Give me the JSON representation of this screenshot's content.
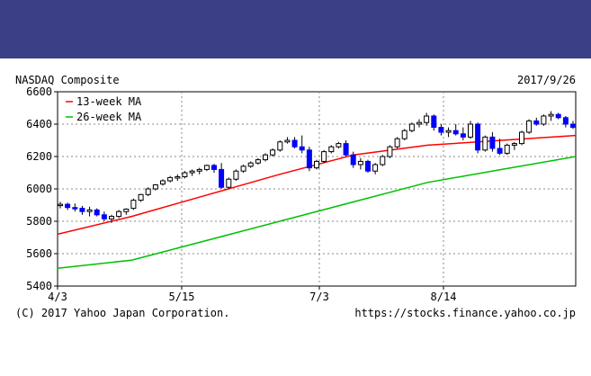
{
  "page": {
    "banner_color": "#3b3f86",
    "copyright": "(C) 2017 Yahoo Japan Corporation.",
    "source_url": "https://stocks.finance.yahoo.co.jp"
  },
  "chart_data": {
    "type": "candlestick",
    "title": "NASDAQ Composite",
    "date_label": "2017/9/26",
    "y_ticks": [
      5400,
      5600,
      5800,
      6000,
      6200,
      6400,
      6600
    ],
    "ylim": [
      5400,
      6600
    ],
    "x_ticks": [
      "4/3",
      "5/15",
      "7/3",
      "8/14"
    ],
    "grid": true,
    "legend_position": "top-left",
    "colors": {
      "up": "#ffffff",
      "down": "#0000ff",
      "ma13": "#ff0000",
      "ma26": "#00c000"
    },
    "legend": [
      {
        "label": "13-week MA",
        "color": "#ff0000"
      },
      {
        "label": "26-week MA",
        "color": "#00c000"
      }
    ],
    "candles": [
      [
        5900,
        5920,
        5880,
        5905
      ],
      [
        5905,
        5915,
        5870,
        5885
      ],
      [
        5885,
        5910,
        5860,
        5880
      ],
      [
        5880,
        5895,
        5840,
        5860
      ],
      [
        5860,
        5890,
        5830,
        5870
      ],
      [
        5870,
        5880,
        5830,
        5840
      ],
      [
        5840,
        5860,
        5800,
        5815
      ],
      [
        5815,
        5840,
        5790,
        5830
      ],
      [
        5830,
        5870,
        5820,
        5860
      ],
      [
        5860,
        5880,
        5840,
        5875
      ],
      [
        5880,
        5940,
        5870,
        5930
      ],
      [
        5930,
        5970,
        5920,
        5965
      ],
      [
        5965,
        6010,
        5955,
        6000
      ],
      [
        6000,
        6030,
        5990,
        6025
      ],
      [
        6030,
        6060,
        6020,
        6050
      ],
      [
        6050,
        6080,
        6040,
        6070
      ],
      [
        6070,
        6090,
        6050,
        6075
      ],
      [
        6075,
        6110,
        6065,
        6100
      ],
      [
        6100,
        6120,
        6080,
        6110
      ],
      [
        6110,
        6130,
        6090,
        6120
      ],
      [
        6120,
        6150,
        6110,
        6145
      ],
      [
        6145,
        6155,
        6100,
        6120
      ],
      [
        6120,
        6160,
        6000,
        6010
      ],
      [
        6010,
        6070,
        6000,
        6060
      ],
      [
        6060,
        6120,
        6050,
        6110
      ],
      [
        6110,
        6150,
        6100,
        6140
      ],
      [
        6140,
        6170,
        6130,
        6160
      ],
      [
        6160,
        6190,
        6150,
        6180
      ],
      [
        6180,
        6220,
        6170,
        6210
      ],
      [
        6210,
        6250,
        6200,
        6240
      ],
      [
        6240,
        6300,
        6230,
        6290
      ],
      [
        6290,
        6320,
        6280,
        6300
      ],
      [
        6300,
        6320,
        6250,
        6260
      ],
      [
        6260,
        6330,
        6220,
        6240
      ],
      [
        6240,
        6260,
        6110,
        6130
      ],
      [
        6130,
        6180,
        6120,
        6170
      ],
      [
        6170,
        6240,
        6160,
        6230
      ],
      [
        6230,
        6270,
        6220,
        6260
      ],
      [
        6260,
        6290,
        6250,
        6280
      ],
      [
        6280,
        6300,
        6200,
        6210
      ],
      [
        6210,
        6230,
        6130,
        6150
      ],
      [
        6150,
        6190,
        6120,
        6170
      ],
      [
        6170,
        6180,
        6100,
        6110
      ],
      [
        6110,
        6160,
        6090,
        6150
      ],
      [
        6150,
        6210,
        6140,
        6200
      ],
      [
        6200,
        6270,
        6190,
        6260
      ],
      [
        6260,
        6320,
        6250,
        6310
      ],
      [
        6310,
        6370,
        6300,
        6360
      ],
      [
        6360,
        6410,
        6350,
        6400
      ],
      [
        6400,
        6430,
        6380,
        6410
      ],
      [
        6410,
        6470,
        6390,
        6450
      ],
      [
        6450,
        6460,
        6360,
        6380
      ],
      [
        6380,
        6400,
        6330,
        6350
      ],
      [
        6350,
        6380,
        6320,
        6360
      ],
      [
        6360,
        6400,
        6330,
        6340
      ],
      [
        6340,
        6380,
        6300,
        6320
      ],
      [
        6320,
        6420,
        6310,
        6400
      ],
      [
        6400,
        6410,
        6220,
        6240
      ],
      [
        6240,
        6330,
        6230,
        6320
      ],
      [
        6320,
        6350,
        6230,
        6250
      ],
      [
        6250,
        6310,
        6210,
        6220
      ],
      [
        6220,
        6280,
        6210,
        6270
      ],
      [
        6270,
        6290,
        6240,
        6280
      ],
      [
        6280,
        6360,
        6270,
        6350
      ],
      [
        6350,
        6430,
        6340,
        6420
      ],
      [
        6420,
        6440,
        6390,
        6400
      ],
      [
        6400,
        6460,
        6390,
        6450
      ],
      [
        6450,
        6480,
        6420,
        6460
      ],
      [
        6460,
        6470,
        6430,
        6440
      ],
      [
        6440,
        6450,
        6380,
        6400
      ],
      [
        6400,
        6420,
        6370,
        6380
      ]
    ],
    "ma13": [
      [
        0,
        5720
      ],
      [
        18,
        5830
      ],
      [
        36,
        5960
      ],
      [
        54,
        6090
      ],
      [
        72,
        6210
      ],
      [
        90,
        6270
      ],
      [
        108,
        6300
      ],
      [
        126,
        6330
      ]
    ],
    "ma26": [
      [
        0,
        5510
      ],
      [
        18,
        5560
      ],
      [
        36,
        5680
      ],
      [
        54,
        5800
      ],
      [
        72,
        5920
      ],
      [
        90,
        6040
      ],
      [
        108,
        6120
      ],
      [
        126,
        6200
      ]
    ]
  }
}
